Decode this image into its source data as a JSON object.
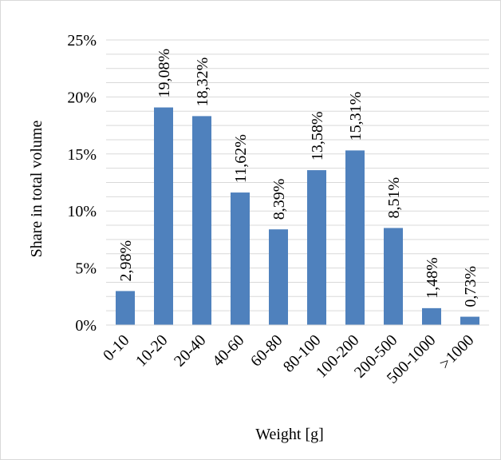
{
  "chart_data": {
    "type": "bar",
    "categories": [
      "0-10",
      "10-20",
      "20-40",
      "40-60",
      "60-80",
      "80-100",
      "100-200",
      "200-500",
      "500-1000",
      ">1000"
    ],
    "values": [
      2.98,
      19.08,
      18.32,
      11.62,
      8.39,
      13.58,
      15.31,
      8.51,
      1.48,
      0.73
    ],
    "data_labels": [
      "2,98%",
      "19,08%",
      "18,32%",
      "11,62%",
      "8,39%",
      "13,58%",
      "15,31%",
      "8,51%",
      "1,48%",
      "0,73%"
    ],
    "xlabel": "Weight [g]",
    "ylabel": "Share in total volume",
    "ylim": [
      0,
      25
    ],
    "yticks": [
      0,
      5,
      10,
      15,
      20,
      25
    ],
    "ytick_labels": [
      "0%",
      "5%",
      "10%",
      "15%",
      "20%",
      "25%"
    ],
    "grid": true,
    "legend": "none",
    "bar_color": "#4f81bd",
    "grid_color": "#d9d9d9"
  }
}
